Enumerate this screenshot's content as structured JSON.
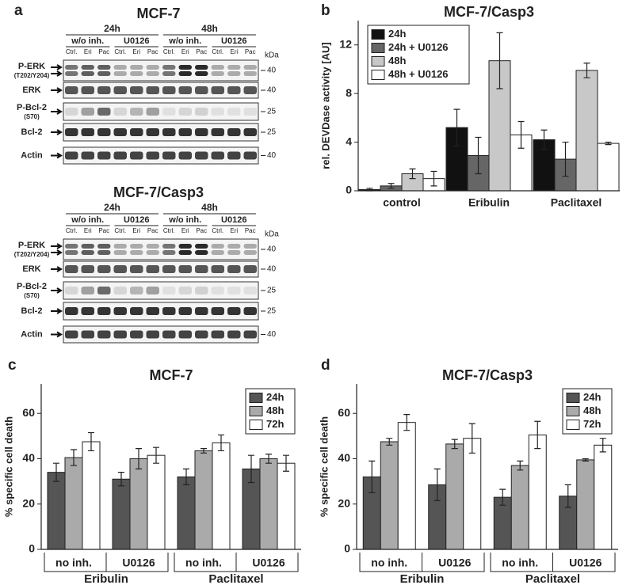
{
  "panel_labels": [
    "a",
    "b",
    "c",
    "d"
  ],
  "blots": [
    {
      "title": "MCF-7",
      "times": [
        "24h",
        "48h"
      ],
      "treatments": [
        "w/o inh.",
        "U0126",
        "w/o inh.",
        "U0126"
      ],
      "lanes": [
        "Ctrl.",
        "Eri",
        "Pac",
        "Ctrl.",
        "Eri",
        "Pac",
        "Ctrl.",
        "Eri",
        "Pac",
        "Ctrl.",
        "Eri",
        "Pac"
      ],
      "unit": "kDa",
      "rows": [
        {
          "label": "P-ERK",
          "sublabel": "(T202/Y204)",
          "marker": "40"
        },
        {
          "label": "ERK",
          "marker": "40"
        },
        {
          "label": "P-Bcl-2",
          "sublabel": "(S70)",
          "marker": "25"
        },
        {
          "label": "Bcl-2",
          "marker": "25"
        },
        {
          "label": "Actin",
          "marker": "40"
        }
      ]
    },
    {
      "title": "MCF-7/Casp3",
      "times": [
        "24h",
        "48h"
      ],
      "treatments": [
        "w/o inh.",
        "U0126",
        "w/o inh.",
        "U0126"
      ],
      "lanes": [
        "Ctrl.",
        "Eri",
        "Pac",
        "Ctrl.",
        "Eri",
        "Pac",
        "Ctrl.",
        "Eri",
        "Pac",
        "Ctrl.",
        "Eri",
        "Pac"
      ],
      "unit": "kDa",
      "rows": [
        {
          "label": "P-ERK",
          "sublabel": "(T202/Y204)",
          "marker": "40"
        },
        {
          "label": "ERK",
          "marker": "40"
        },
        {
          "label": "P-Bcl-2",
          "sublabel": "(S70)",
          "marker": "25"
        },
        {
          "label": "Bcl-2",
          "marker": "25"
        },
        {
          "label": "Actin",
          "marker": "40"
        }
      ]
    }
  ],
  "chart_data": [
    {
      "type": "bar",
      "title": "MCF-7/Casp3",
      "y_label": "rel. DEVDase activity [AU]",
      "categories": [
        "control",
        "Eribulin",
        "Paclitaxel"
      ],
      "series": [
        {
          "name": "24h",
          "color": "#111111",
          "values": [
            0.1,
            5.2,
            4.2
          ],
          "errors": [
            0.1,
            1.5,
            0.8
          ]
        },
        {
          "name": "24h + U0126",
          "color": "#666666",
          "values": [
            0.4,
            2.9,
            2.6
          ],
          "errors": [
            0.2,
            1.5,
            1.4
          ]
        },
        {
          "name": "48h",
          "color": "#c8c8c8",
          "values": [
            1.4,
            10.7,
            9.9
          ],
          "errors": [
            0.4,
            2.3,
            0.6
          ]
        },
        {
          "name": "48h + U0126",
          "color": "#ffffff",
          "values": [
            1.0,
            4.6,
            3.9
          ],
          "errors": [
            0.6,
            1.1,
            0.1
          ]
        }
      ],
      "ylim": [
        0,
        14
      ],
      "yticks": [
        0,
        4,
        8,
        12
      ],
      "legend": "upper left"
    },
    {
      "type": "bar",
      "title": "MCF-7",
      "y_label": "% specific cell death",
      "categories": [
        "no inh.",
        "U0126",
        "no inh.",
        "U0126"
      ],
      "groups": [
        "Eribulin",
        "Paclitaxel"
      ],
      "series": [
        {
          "name": "24h",
          "color": "#555555",
          "values": [
            34,
            31,
            32,
            35.5
          ],
          "errors": [
            4,
            3,
            3.5,
            6
          ]
        },
        {
          "name": "48h",
          "color": "#aaaaaa",
          "values": [
            40.5,
            40,
            43.5,
            40
          ],
          "errors": [
            3.5,
            4.5,
            1,
            2
          ]
        },
        {
          "name": "72h",
          "color": "#ffffff",
          "values": [
            47.5,
            41.5,
            47,
            38
          ],
          "errors": [
            4,
            3.5,
            3.5,
            3.5
          ]
        }
      ],
      "ylim": [
        0,
        73
      ],
      "yticks": [
        0,
        20,
        40,
        60
      ],
      "legend": "upper right"
    },
    {
      "type": "bar",
      "title": "MCF-7/Casp3",
      "y_label": "% specific cell death",
      "categories": [
        "no inh.",
        "U0126",
        "no inh.",
        "U0126"
      ],
      "groups": [
        "Eribulin",
        "Paclitaxel"
      ],
      "series": [
        {
          "name": "24h",
          "color": "#555555",
          "values": [
            32,
            28.5,
            23,
            23.5
          ],
          "errors": [
            7,
            7,
            3.5,
            5
          ]
        },
        {
          "name": "48h",
          "color": "#aaaaaa",
          "values": [
            47.5,
            46.5,
            37,
            39.5
          ],
          "errors": [
            1.5,
            2,
            2,
            0.5
          ]
        },
        {
          "name": "72h",
          "color": "#ffffff",
          "values": [
            56,
            49,
            50.5,
            46
          ],
          "errors": [
            3.5,
            6.5,
            6,
            3
          ]
        }
      ],
      "ylim": [
        0,
        73
      ],
      "yticks": [
        0,
        20,
        40,
        60
      ],
      "legend": "upper right"
    }
  ]
}
